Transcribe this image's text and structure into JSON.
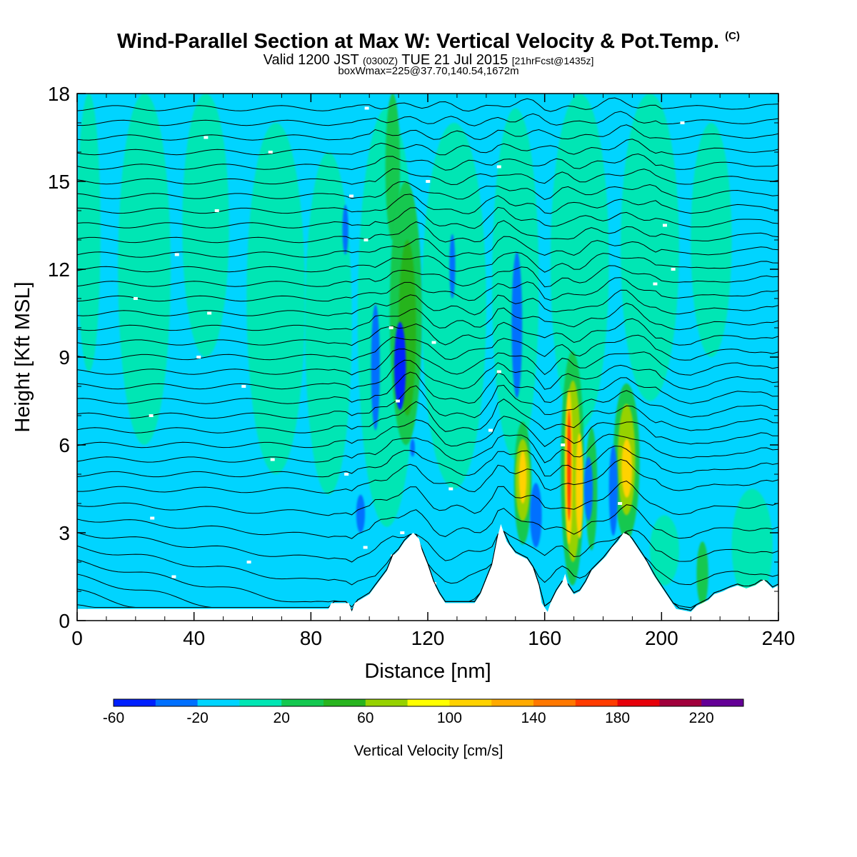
{
  "header": {
    "title": "Wind-Parallel Section at Max W: Vertical Velocity & Pot.Temp.",
    "title_mark": "(C)",
    "valid_prefix": "Valid 1200 JST",
    "valid_zulu": "(0300Z)",
    "valid_date": "TUE 21 Jul 2015",
    "forecast": "[21hrFcst@1435z]",
    "boxinfo": "boxWmax=225@37.70,140.54,1672m"
  },
  "colors": {
    "background_field": "#00d4ff",
    "terrain": "#ffffff",
    "contour": "#000000"
  },
  "chart_data": {
    "type": "heatmap",
    "xlabel": "Distance [nm]",
    "ylabel": "Height [Kft MSL]",
    "xlim": [
      0,
      240
    ],
    "ylim": [
      0,
      18
    ],
    "xticks": [
      0,
      40,
      80,
      120,
      160,
      200,
      240
    ],
    "yticks": [
      0,
      3,
      6,
      9,
      12,
      15,
      18
    ],
    "colorbar": {
      "label": "Vertical Velocity [cm/s]",
      "bounds": [
        -60,
        -40,
        -20,
        0,
        20,
        40,
        60,
        80,
        100,
        120,
        140,
        160,
        180,
        200,
        220,
        240
      ],
      "tick_labels": [
        -60,
        -20,
        20,
        60,
        100,
        140,
        180,
        220
      ],
      "colors": [
        "#0020ff",
        "#0070ff",
        "#00d4ff",
        "#00e6b4",
        "#14c850",
        "#28b41e",
        "#96d200",
        "#ffff00",
        "#ffd200",
        "#ffaa00",
        "#ff7800",
        "#ff3c00",
        "#e6000a",
        "#a0003c",
        "#640096"
      ]
    },
    "terrain_kft": [
      [
        0,
        0.4
      ],
      [
        86,
        0.4
      ],
      [
        87,
        0.6
      ],
      [
        93,
        0.6
      ],
      [
        94,
        0.3
      ],
      [
        95,
        0.6
      ],
      [
        100,
        0.9
      ],
      [
        103,
        1.3
      ],
      [
        106,
        1.7
      ],
      [
        108,
        2.2
      ],
      [
        110,
        2.4
      ],
      [
        112,
        2.7
      ],
      [
        114,
        2.9
      ],
      [
        115,
        3.0
      ],
      [
        117,
        2.8
      ],
      [
        118,
        2.4
      ],
      [
        120,
        1.9
      ],
      [
        122,
        1.3
      ],
      [
        124,
        0.9
      ],
      [
        126,
        0.6
      ],
      [
        136,
        0.6
      ],
      [
        138,
        0.9
      ],
      [
        140,
        1.4
      ],
      [
        142,
        1.9
      ],
      [
        143,
        2.4
      ],
      [
        144,
        2.9
      ],
      [
        145,
        3.3
      ],
      [
        147,
        2.7
      ],
      [
        150,
        2.3
      ],
      [
        154,
        2.1
      ],
      [
        156,
        1.8
      ],
      [
        158,
        1.2
      ],
      [
        159,
        0.6
      ],
      [
        161,
        0.3
      ],
      [
        162,
        0.6
      ],
      [
        164,
        1.0
      ],
      [
        166,
        1.3
      ],
      [
        167,
        1.6
      ],
      [
        168,
        1.2
      ],
      [
        170,
        0.9
      ],
      [
        172,
        1.0
      ],
      [
        174,
        1.3
      ],
      [
        176,
        1.7
      ],
      [
        178,
        1.9
      ],
      [
        181,
        2.2
      ],
      [
        183,
        2.5
      ],
      [
        185,
        2.7
      ],
      [
        187,
        3.0
      ],
      [
        189,
        2.9
      ],
      [
        191,
        2.6
      ],
      [
        193,
        2.3
      ],
      [
        195,
        2.0
      ],
      [
        197,
        1.6
      ],
      [
        199,
        1.3
      ],
      [
        201,
        1.0
      ],
      [
        203,
        0.7
      ],
      [
        205,
        0.4
      ],
      [
        210,
        0.3
      ],
      [
        212,
        0.5
      ],
      [
        216,
        0.7
      ],
      [
        218,
        0.9
      ],
      [
        221,
        1.0
      ],
      [
        223,
        1.1
      ],
      [
        226,
        1.2
      ],
      [
        229,
        1.1
      ],
      [
        232,
        1.2
      ],
      [
        235,
        1.4
      ],
      [
        238,
        1.1
      ],
      [
        240,
        1.2
      ]
    ],
    "field_patches": [
      {
        "x": [
          0,
          240
        ],
        "y": [
          0,
          18
        ],
        "value": -10
      },
      {
        "x": [
          0,
          8
        ],
        "y": [
          8.5,
          18
        ],
        "value": 10
      },
      {
        "x": [
          14,
          32
        ],
        "y": [
          6,
          18
        ],
        "value": 10
      },
      {
        "x": [
          36,
          52
        ],
        "y": [
          9,
          18
        ],
        "value": 10
      },
      {
        "x": [
          58,
          78
        ],
        "y": [
          5,
          17
        ],
        "value": 10
      },
      {
        "x": [
          78,
          94
        ],
        "y": [
          4.3,
          16
        ],
        "value": 10
      },
      {
        "x": [
          96,
          116
        ],
        "y": [
          3.2,
          17.5
        ],
        "value": 10
      },
      {
        "x": [
          118,
          140
        ],
        "y": [
          4.5,
          17
        ],
        "value": 10
      },
      {
        "x": [
          142,
          158
        ],
        "y": [
          5.5,
          17.5
        ],
        "value": 10
      },
      {
        "x": [
          162,
          182
        ],
        "y": [
          6.5,
          18
        ],
        "value": 10
      },
      {
        "x": [
          186,
          206
        ],
        "y": [
          7.5,
          18
        ],
        "value": 10
      },
      {
        "x": [
          210,
          224
        ],
        "y": [
          9,
          17
        ],
        "value": 10
      },
      {
        "x": [
          224,
          238
        ],
        "y": [
          0.6,
          4.5
        ],
        "value": 10
      },
      {
        "x": [
          196,
          206
        ],
        "y": [
          1.2,
          3.6
        ],
        "value": 10
      },
      {
        "x": [
          186,
          190
        ],
        "y": [
          2.5,
          5
        ],
        "value": 30
      },
      {
        "x": [
          212,
          216
        ],
        "y": [
          0.5,
          2.7
        ],
        "value": 30
      },
      {
        "x": [
          105.5,
          110.5
        ],
        "y": [
          13,
          18
        ],
        "value": 30
      },
      {
        "x": [
          107,
          118
        ],
        "y": [
          6,
          15
        ],
        "value": 30
      },
      {
        "x": [
          110,
          116
        ],
        "y": [
          7,
          13
        ],
        "value": 50
      },
      {
        "x": [
          149.5,
          155.5
        ],
        "y": [
          2.6,
          6.8
        ],
        "value": 30
      },
      {
        "x": [
          165.5,
          173.5
        ],
        "y": [
          1.2,
          9.2
        ],
        "value": 30
      },
      {
        "x": [
          174,
          178
        ],
        "y": [
          2.4,
          6.6
        ],
        "value": 30
      },
      {
        "x": [
          183.5,
          192.5
        ],
        "y": [
          2.8,
          8.1
        ],
        "value": 30
      },
      {
        "x": [
          150,
          155
        ],
        "y": [
          3.4,
          6.2
        ],
        "value": 70
      },
      {
        "x": [
          151.2,
          153.8
        ],
        "y": [
          4.0,
          5.8
        ],
        "value": 110
      },
      {
        "x": [
          166.8,
          172.5
        ],
        "y": [
          2.0,
          8.2
        ],
        "value": 70
      },
      {
        "x": [
          167,
          169.6
        ],
        "y": [
          2.6,
          7.9
        ],
        "value": 110
      },
      {
        "x": [
          167.7,
          169.0
        ],
        "y": [
          3.4,
          7.2
        ],
        "value": 170
      },
      {
        "x": [
          170.6,
          173.2
        ],
        "y": [
          2.8,
          6.4
        ],
        "value": 110
      },
      {
        "x": [
          185,
          191
        ],
        "y": [
          3.6,
          7.4
        ],
        "value": 70
      },
      {
        "x": [
          186.3,
          189.9
        ],
        "y": [
          4.2,
          6.2
        ],
        "value": 110
      },
      {
        "x": [
          108.5,
          112.5
        ],
        "y": [
          7.2,
          10.2
        ],
        "value": -50
      },
      {
        "x": [
          100.6,
          103.6
        ],
        "y": [
          6.5,
          10.8
        ],
        "value": -30
      },
      {
        "x": [
          90.8,
          92.8
        ],
        "y": [
          12.5,
          14.2
        ],
        "value": -30
      },
      {
        "x": [
          127.4,
          129.4
        ],
        "y": [
          11,
          13.2
        ],
        "value": -30
      },
      {
        "x": [
          148.7,
          152.3
        ],
        "y": [
          7.6,
          12.6
        ],
        "value": -30
      },
      {
        "x": [
          95.5,
          98.5
        ],
        "y": [
          3.0,
          4.3
        ],
        "value": -30
      },
      {
        "x": [
          155,
          159
        ],
        "y": [
          2.5,
          4.7
        ],
        "value": -30
      },
      {
        "x": [
          173.5,
          176.5
        ],
        "y": [
          3.4,
          5.6
        ],
        "value": -30
      },
      {
        "x": [
          182,
          185
        ],
        "y": [
          2.9,
          6.0
        ],
        "value": -30
      },
      {
        "x": [
          114,
          115.6
        ],
        "y": [
          5.6,
          6.2
        ],
        "value": -30
      }
    ],
    "theta_levels_kft_at_x0": [
      0.5,
      1.0,
      1.5,
      2.0,
      2.5,
      3.0,
      3.5,
      4.0,
      4.5,
      5.0,
      5.5,
      6.0,
      6.5,
      7.0,
      7.5,
      8.0,
      8.5,
      9.0,
      9.5,
      10.0,
      10.5,
      11.0,
      11.5,
      12.0,
      12.5,
      13.0,
      13.5,
      14.0,
      14.5,
      15.0,
      15.5,
      16.0,
      16.5,
      17.0,
      17.5
    ]
  }
}
